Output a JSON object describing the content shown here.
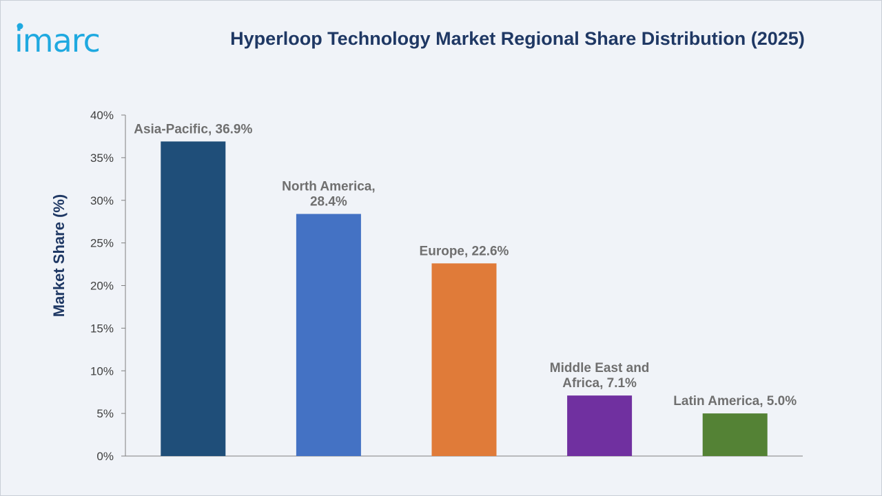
{
  "logo": {
    "text": "imarc",
    "color": "#1fa9e0"
  },
  "title": "Hyperloop Technology Market Regional Share Distribution (2025)",
  "chart_data": {
    "type": "bar",
    "title": "Hyperloop Technology Market Regional Share Distribution (2025)",
    "xlabel": "",
    "ylabel": "Market Share (%)",
    "ylim": [
      0,
      40
    ],
    "yticks": [
      0,
      5,
      10,
      15,
      20,
      25,
      30,
      35,
      40
    ],
    "ytick_labels": [
      "0%",
      "5%",
      "10%",
      "15%",
      "20%",
      "25%",
      "30%",
      "35%",
      "40%"
    ],
    "categories": [
      "Asia-Pacific",
      "North America",
      "Europe",
      "Middle East and Africa",
      "Latin America"
    ],
    "values": [
      36.9,
      28.4,
      22.6,
      7.1,
      5.0
    ],
    "data_labels": [
      [
        "Asia-Pacific, 36.9%"
      ],
      [
        "North America,",
        "28.4%"
      ],
      [
        "Europe, 22.6%"
      ],
      [
        "Middle East and",
        "Africa, 7.1%"
      ],
      [
        "Latin America, 5.0%"
      ]
    ],
    "colors": [
      "#1f4e79",
      "#4472c4",
      "#e07b39",
      "#7030a0",
      "#548235"
    ],
    "grid": false,
    "legend": "none"
  }
}
